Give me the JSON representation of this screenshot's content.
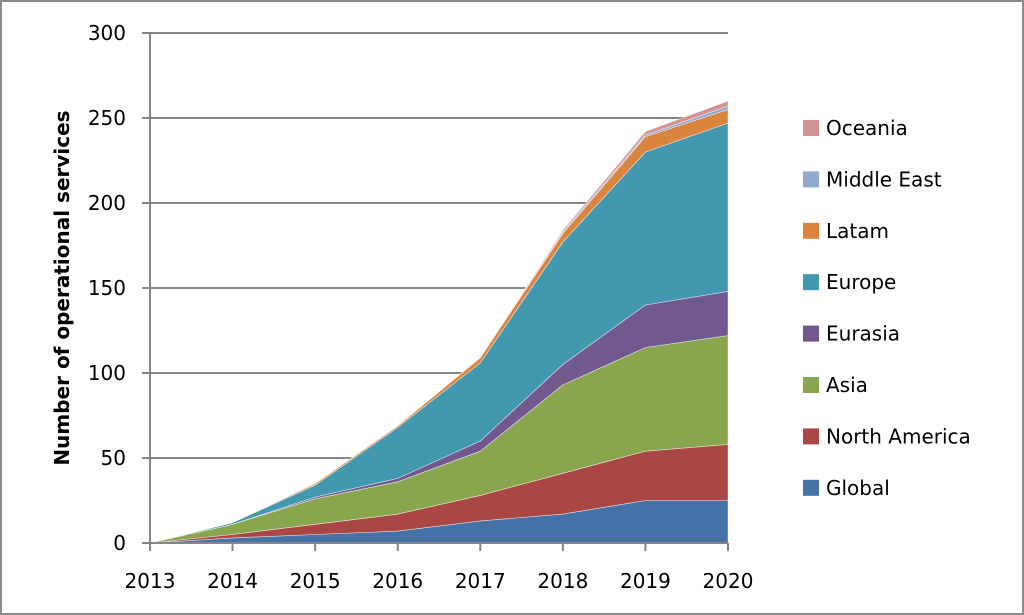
{
  "chart_data": {
    "type": "area",
    "stacked": true,
    "title": "",
    "xlabel": "",
    "ylabel": "Number of operational services",
    "ylim": [
      0,
      300
    ],
    "yticks": [
      0,
      50,
      100,
      150,
      200,
      250,
      300
    ],
    "ytick_labels": [
      "0",
      "50",
      "100",
      "150",
      "200",
      "250",
      "300"
    ],
    "categories": [
      "2013",
      "2014",
      "2015",
      "2016",
      "2017",
      "2018",
      "2019",
      "2020"
    ],
    "grid": "horizontal",
    "legend_position": "right",
    "series": [
      {
        "name": "Global",
        "color": "#4572A7",
        "values": [
          0,
          3,
          5,
          7,
          13,
          17,
          25,
          25
        ]
      },
      {
        "name": "North America",
        "color": "#AA4643",
        "values": [
          0,
          2,
          6,
          10,
          15,
          24,
          29,
          33
        ]
      },
      {
        "name": "Asia",
        "color": "#89A54E",
        "values": [
          0,
          6,
          15,
          19,
          26,
          52,
          61,
          64
        ]
      },
      {
        "name": "Eurasia",
        "color": "#71588F",
        "values": [
          0,
          0,
          1,
          2,
          6,
          12,
          25,
          26
        ]
      },
      {
        "name": "Europe",
        "color": "#4198AF",
        "values": [
          0,
          1,
          7,
          30,
          46,
          72,
          90,
          99
        ]
      },
      {
        "name": "Latam",
        "color": "#DB843D",
        "values": [
          0,
          0,
          1,
          1,
          3,
          5,
          9,
          8
        ]
      },
      {
        "name": "Middle East",
        "color": "#93A9CF",
        "values": [
          0,
          0,
          0,
          0,
          0,
          1,
          1,
          2
        ]
      },
      {
        "name": "Oceania",
        "color": "#D19392",
        "values": [
          0,
          0,
          0,
          0,
          0,
          1,
          2,
          3
        ]
      }
    ]
  }
}
